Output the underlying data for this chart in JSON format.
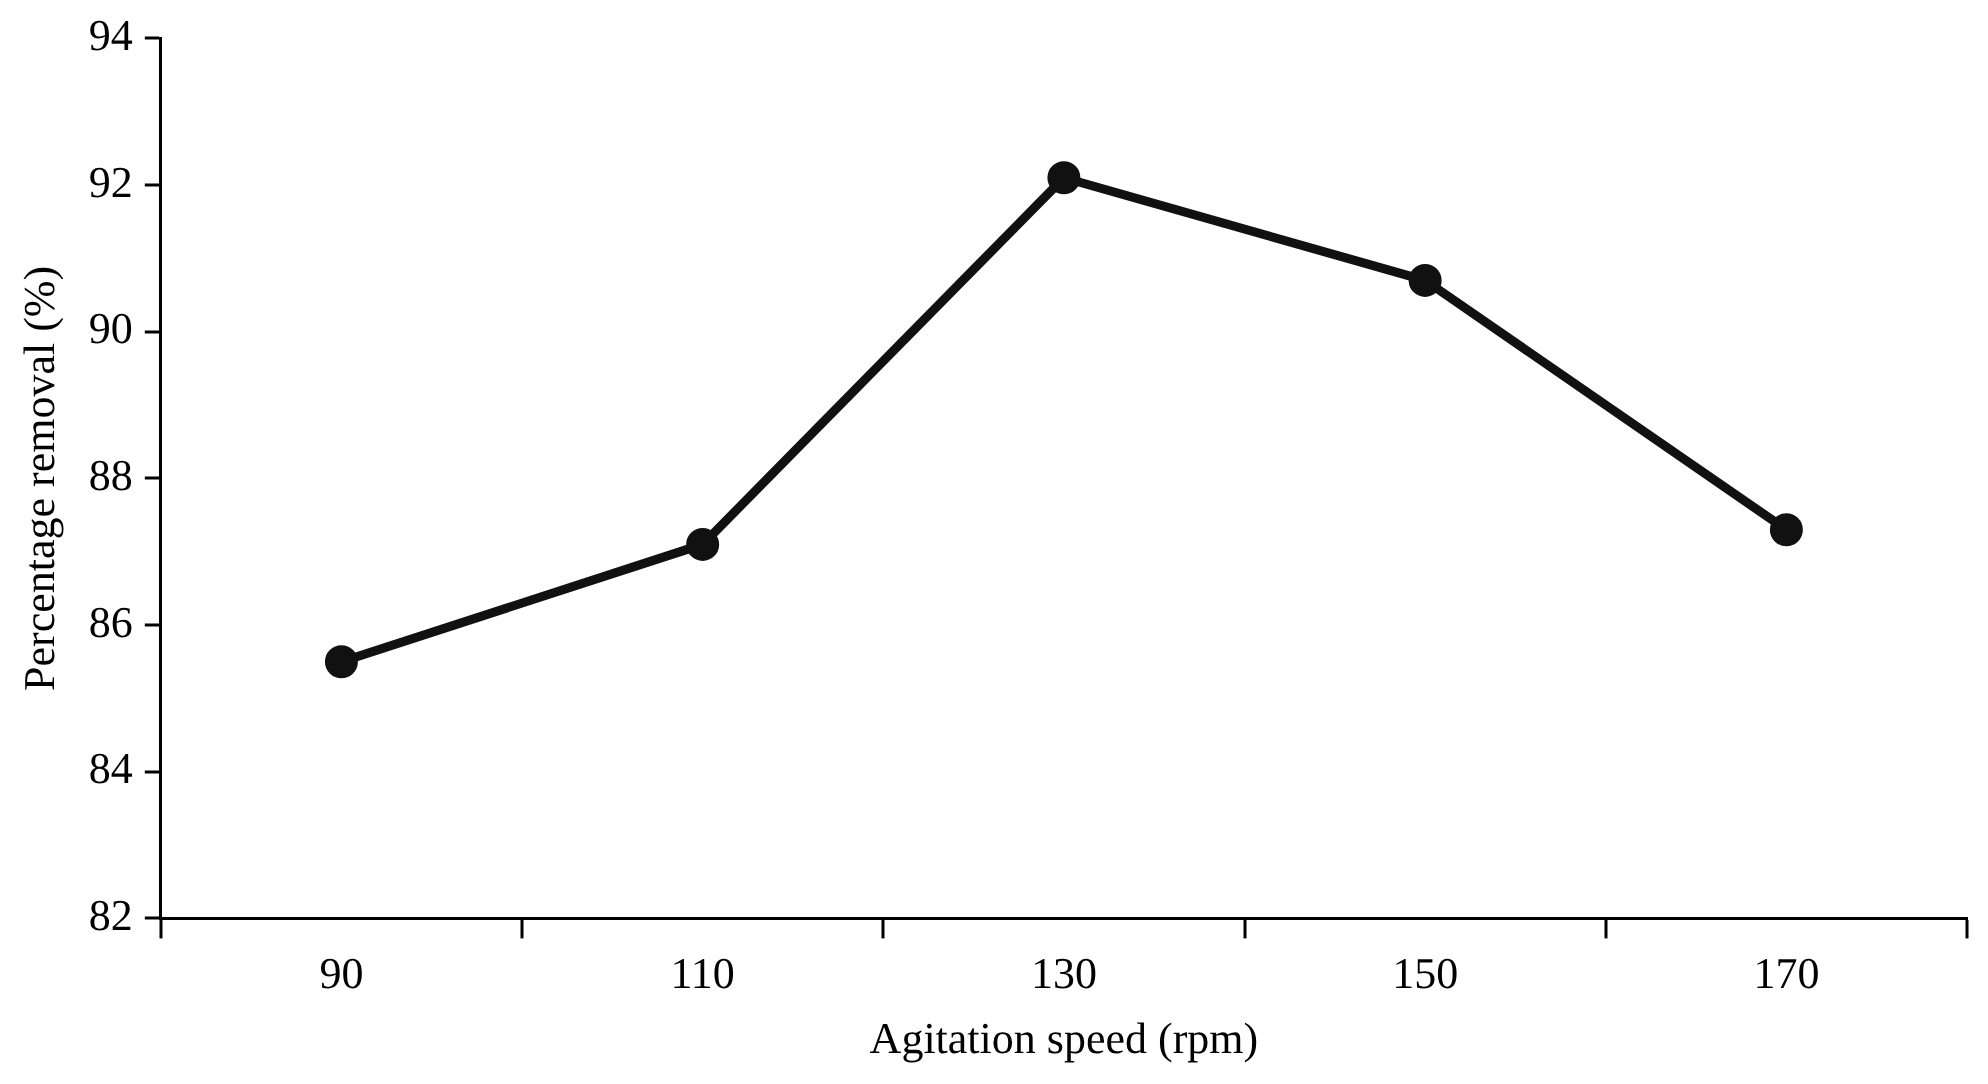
{
  "chart_data": {
    "type": "line",
    "xlabel": "Agitation speed (rpm)",
    "ylabel": "Percentage removal (%)",
    "categories": [
      "90",
      "110",
      "130",
      "150",
      "170"
    ],
    "series": [
      {
        "color": "#111111",
        "values": [
          85.5,
          87.1,
          92.1,
          90.7,
          87.3
        ]
      }
    ],
    "ylim": [
      82,
      94
    ],
    "yticks": [
      82,
      84,
      86,
      88,
      90,
      92,
      94
    ],
    "grid": false,
    "legend": false,
    "marker": "circle",
    "line_style": "solid"
  }
}
